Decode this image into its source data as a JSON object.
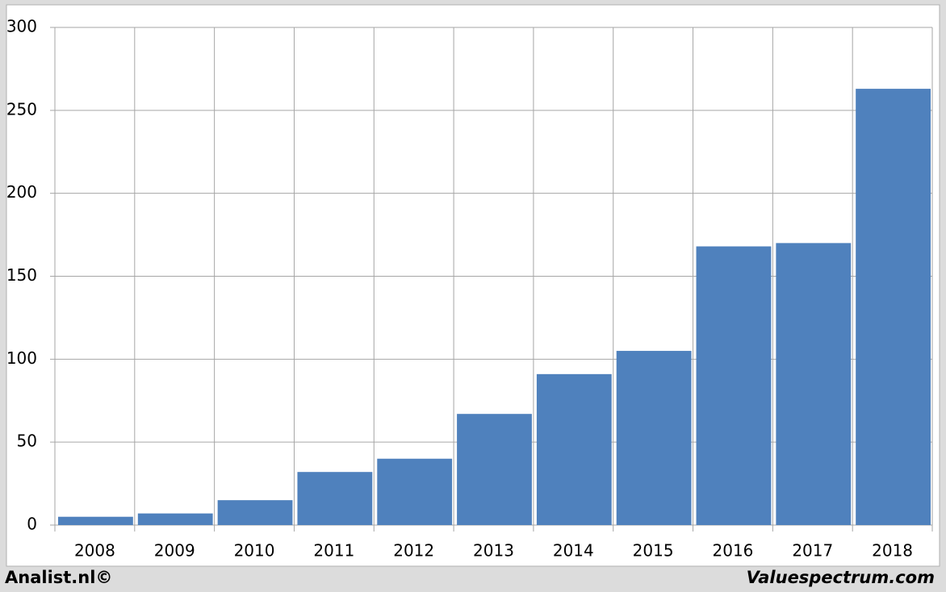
{
  "chart_data": {
    "type": "bar",
    "categories": [
      "2008",
      "2009",
      "2010",
      "2011",
      "2012",
      "2013",
      "2014",
      "2015",
      "2016",
      "2017",
      "2018"
    ],
    "values": [
      5,
      7,
      15,
      32,
      40,
      67,
      91,
      105,
      168,
      170,
      263
    ],
    "color": "#4f81bd",
    "ylim": [
      0,
      300
    ],
    "yticks": [
      0,
      50,
      100,
      150,
      200,
      250,
      300
    ],
    "grid": true,
    "footer_left": "Analist.nl©",
    "footer_right": "Valuespectrum.com"
  }
}
